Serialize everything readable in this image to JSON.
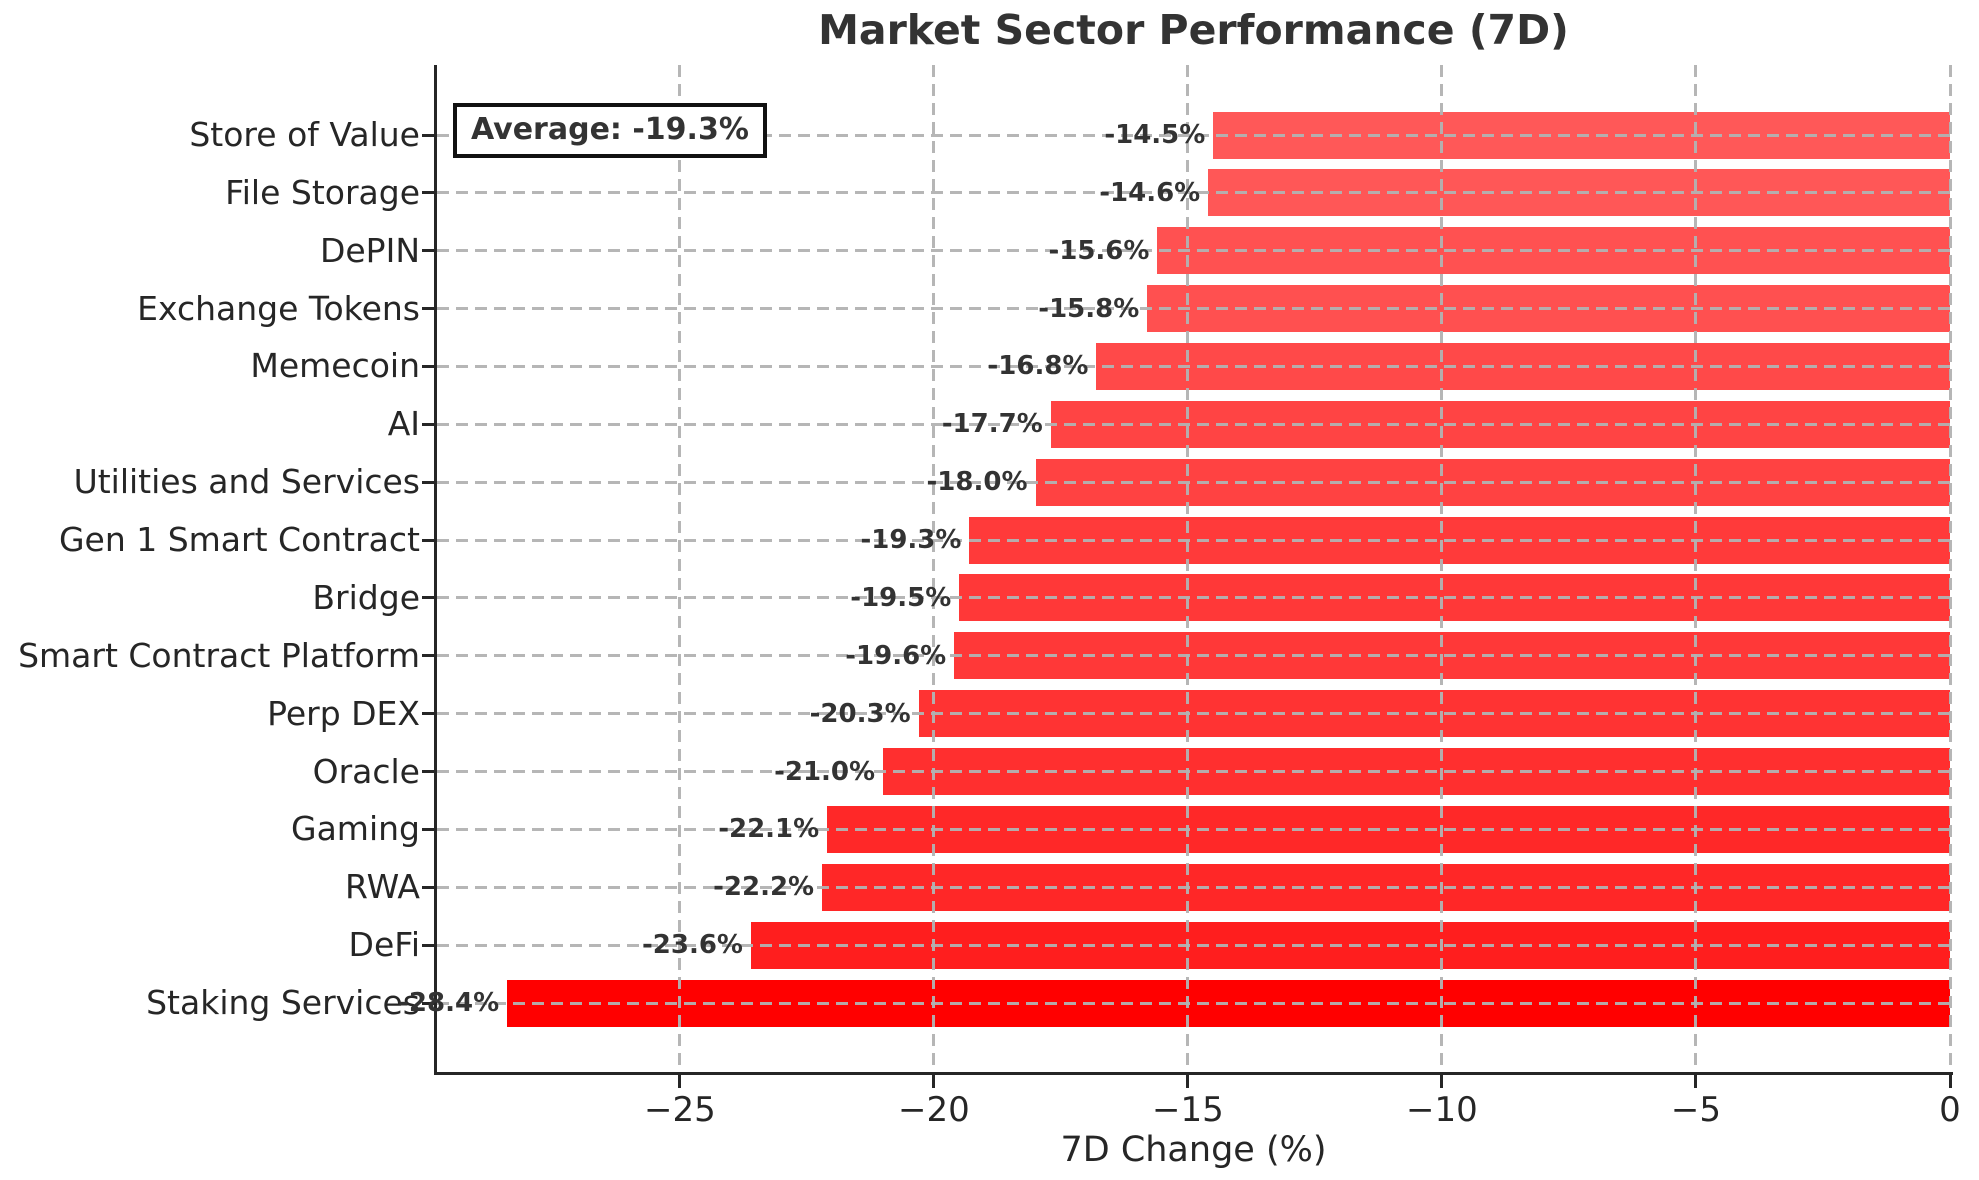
{
  "page": {
    "background": "#FFFFFF"
  },
  "chart_data": {
    "type": "bar",
    "orientation": "horizontal",
    "title": "Market Sector Performance (7D)",
    "xlabel": "7D Change (%)",
    "ylabel": "",
    "annotation": "Average: -19.3%",
    "average": -19.3,
    "categories": [
      "Store of Value",
      "File Storage",
      "DePIN",
      "Exchange Tokens",
      "Memecoin",
      "AI",
      "Utilities and Services",
      "Gen 1 Smart Contract",
      "Bridge",
      "Smart Contract Platform",
      "Perp DEX",
      "Oracle",
      "Gaming",
      "RWA",
      "DeFi",
      "Staking Services"
    ],
    "values": [
      -14.5,
      -14.6,
      -15.6,
      -15.8,
      -16.8,
      -17.7,
      -18.0,
      -19.3,
      -19.5,
      -19.6,
      -20.3,
      -21.0,
      -22.1,
      -22.2,
      -23.6,
      -28.4
    ],
    "value_labels": [
      "-14.5%",
      "-14.6%",
      "-15.6%",
      "-15.8%",
      "-16.8%",
      "-17.7%",
      "-18.0%",
      "-19.3%",
      "-19.5%",
      "-19.6%",
      "-20.3%",
      "-21.0%",
      "-22.1%",
      "-22.2%",
      "-23.6%",
      "-28.4%"
    ],
    "bar_colors": [
      "#FF5858",
      "#FF5757",
      "#FF5151",
      "#FF5050",
      "#FF4949",
      "#FF4444",
      "#FF4242",
      "#FF3A3A",
      "#FF3838",
      "#FF3838",
      "#FF3333",
      "#FF2F2F",
      "#FF2828",
      "#FF2727",
      "#FF1E1E",
      "#FF0000"
    ],
    "xlim": [
      -29.78,
      0
    ],
    "xticks": [
      -25,
      -20,
      -15,
      -10,
      -5,
      0
    ],
    "xtick_labels": [
      "−25",
      "−20",
      "−15",
      "−10",
      "−5",
      "0"
    ],
    "grid": true,
    "legend_position": "none"
  },
  "colors": {
    "bar_weakest": "#FF5858",
    "bar_strongest": "#FF0000",
    "grid": "#B2B2B2",
    "axis": "#262626",
    "title_text": "#333333",
    "value_label_text": "#333333",
    "annotation_border": "#111111",
    "annotation_background": "#FFFFFF"
  }
}
